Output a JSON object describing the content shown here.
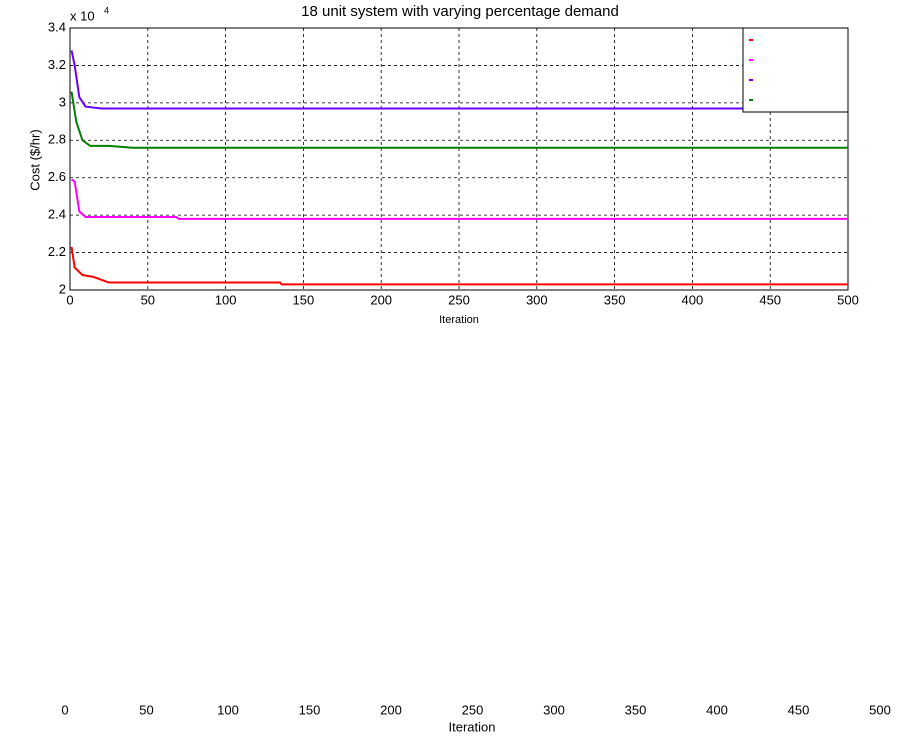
{
  "chart_data": {
    "type": "line",
    "title": "18 unit system with varying percentage demand",
    "y_label": "Cost ($/hr)",
    "x_label": "Iteration",
    "y_multiplier": {
      "base": "x 10",
      "exponent": "4"
    },
    "xlim": [
      0,
      500
    ],
    "xticks": [
      0,
      50,
      100,
      150,
      200,
      250,
      300,
      350,
      400,
      450,
      500
    ],
    "ylim": [
      2,
      3.4
    ],
    "yticks": [
      2,
      2.2,
      2.4,
      2.6,
      2.8,
      3,
      3.2,
      3.4
    ],
    "grid": true,
    "legend": "upper right",
    "series": [
      {
        "color": "#ff0000",
        "x": [
          1,
          3,
          8,
          15,
          25,
          135,
          136,
          500
        ],
        "values": [
          2.23,
          2.12,
          2.08,
          2.07,
          2.04,
          2.04,
          2.03,
          2.03
        ]
      },
      {
        "color": "#ff00ff",
        "x": [
          1,
          3,
          6,
          10,
          68,
          70,
          500
        ],
        "values": [
          2.59,
          2.58,
          2.42,
          2.39,
          2.39,
          2.38,
          2.38
        ]
      },
      {
        "color": "#6a00ff",
        "x": [
          1,
          3,
          6,
          10,
          20,
          500
        ],
        "values": [
          3.28,
          3.2,
          3.03,
          2.98,
          2.97,
          2.97
        ]
      },
      {
        "color": "#008000",
        "x": [
          1,
          4,
          8,
          13,
          25,
          40,
          500
        ],
        "values": [
          3.06,
          2.9,
          2.8,
          2.77,
          2.77,
          2.76,
          2.76
        ]
      }
    ]
  },
  "lower_axis": {
    "xlim": [
      0,
      500
    ],
    "xticks": [
      0,
      50,
      100,
      150,
      200,
      250,
      300,
      350,
      400,
      450,
      500
    ],
    "x_label": "Iteration"
  }
}
